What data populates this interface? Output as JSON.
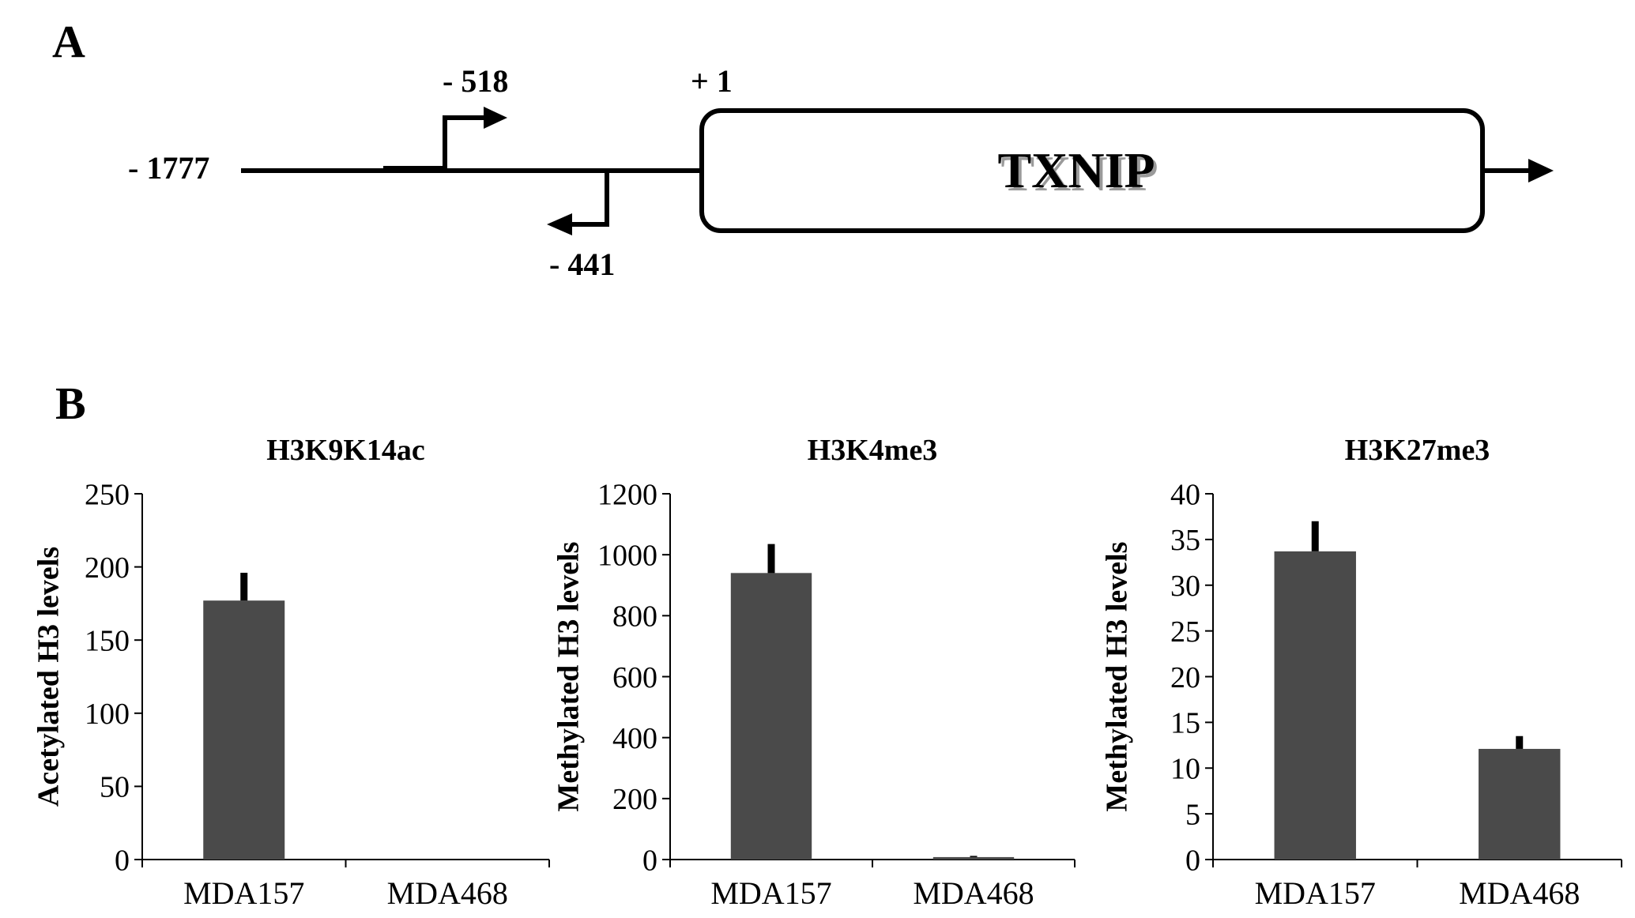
{
  "panel_a": {
    "letter": "A",
    "start_label": "- 1777",
    "forward_primer_label": "- 518",
    "reverse_primer_label": "- 441",
    "tss_label": "+ 1",
    "gene_name": "TXNIP"
  },
  "panel_b": {
    "letter": "B"
  },
  "chart_data": [
    {
      "type": "bar",
      "title": "H3K9K14ac",
      "xlabel": "",
      "ylabel": "Acetylated H3 levels",
      "categories": [
        "MDA157",
        "MDA468"
      ],
      "values": [
        177,
        0
      ],
      "errors": [
        19,
        0
      ],
      "ylim": [
        0,
        250
      ],
      "yticks": [
        0,
        50,
        100,
        150,
        200,
        250
      ],
      "grid": false,
      "bar_color": "#4a4a4a"
    },
    {
      "type": "bar",
      "title": "H3K4me3",
      "xlabel": "",
      "ylabel": "Methylated H3 levels",
      "categories": [
        "MDA157",
        "MDA468"
      ],
      "values": [
        940,
        8
      ],
      "errors": [
        95,
        4
      ],
      "ylim": [
        0,
        1200
      ],
      "yticks": [
        0,
        200,
        400,
        600,
        800,
        1000,
        1200
      ],
      "grid": false,
      "bar_color": "#4a4a4a"
    },
    {
      "type": "bar",
      "title": "H3K27me3",
      "xlabel": "",
      "ylabel": "Methylated H3 levels",
      "categories": [
        "MDA157",
        "MDA468"
      ],
      "values": [
        33.7,
        12.1
      ],
      "errors": [
        3.3,
        1.4
      ],
      "ylim": [
        0,
        40
      ],
      "yticks": [
        0,
        5,
        10,
        15,
        20,
        25,
        30,
        35,
        40
      ],
      "grid": false,
      "bar_color": "#4a4a4a"
    }
  ]
}
